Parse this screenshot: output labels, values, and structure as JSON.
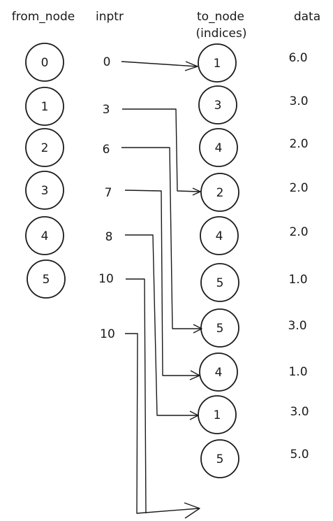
{
  "headers": {
    "from_node": "from_node",
    "inptr": "inptr",
    "to_node": "to_node",
    "to_node_sub": "(indices)",
    "data": "data"
  },
  "from_nodes": [
    "0",
    "1",
    "2",
    "3",
    "4",
    "5"
  ],
  "inptr": [
    "0",
    "3",
    "6",
    "7",
    "8",
    "10",
    "10"
  ],
  "to_nodes": [
    "1",
    "3",
    "4",
    "2",
    "4",
    "5",
    "5",
    "4",
    "1",
    "5"
  ],
  "data": [
    "6.0",
    "3.0",
    "2.0",
    "2.0",
    "2.0",
    "1.0",
    "3.0",
    "1.0",
    "3.0",
    "5.0"
  ]
}
